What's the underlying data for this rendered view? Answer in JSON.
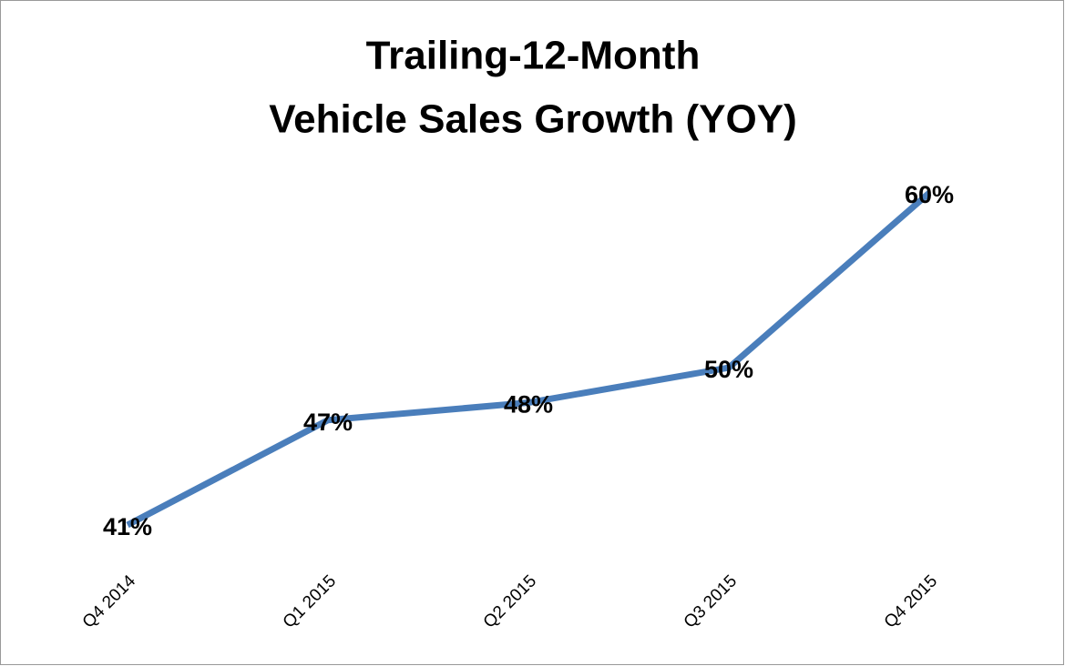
{
  "chart_data": {
    "type": "line",
    "title": [
      "Trailing-12-Month",
      "Vehicle Sales Growth (YOY)"
    ],
    "categories": [
      "Q4 2014",
      "Q1 2015",
      "Q2 2015",
      "Q3 2015",
      "Q4 2015"
    ],
    "values": [
      41,
      47,
      48,
      50,
      60
    ],
    "value_labels": [
      "41%",
      "47%",
      "48%",
      "50%",
      "60%"
    ],
    "color": "#4a7ebb"
  }
}
